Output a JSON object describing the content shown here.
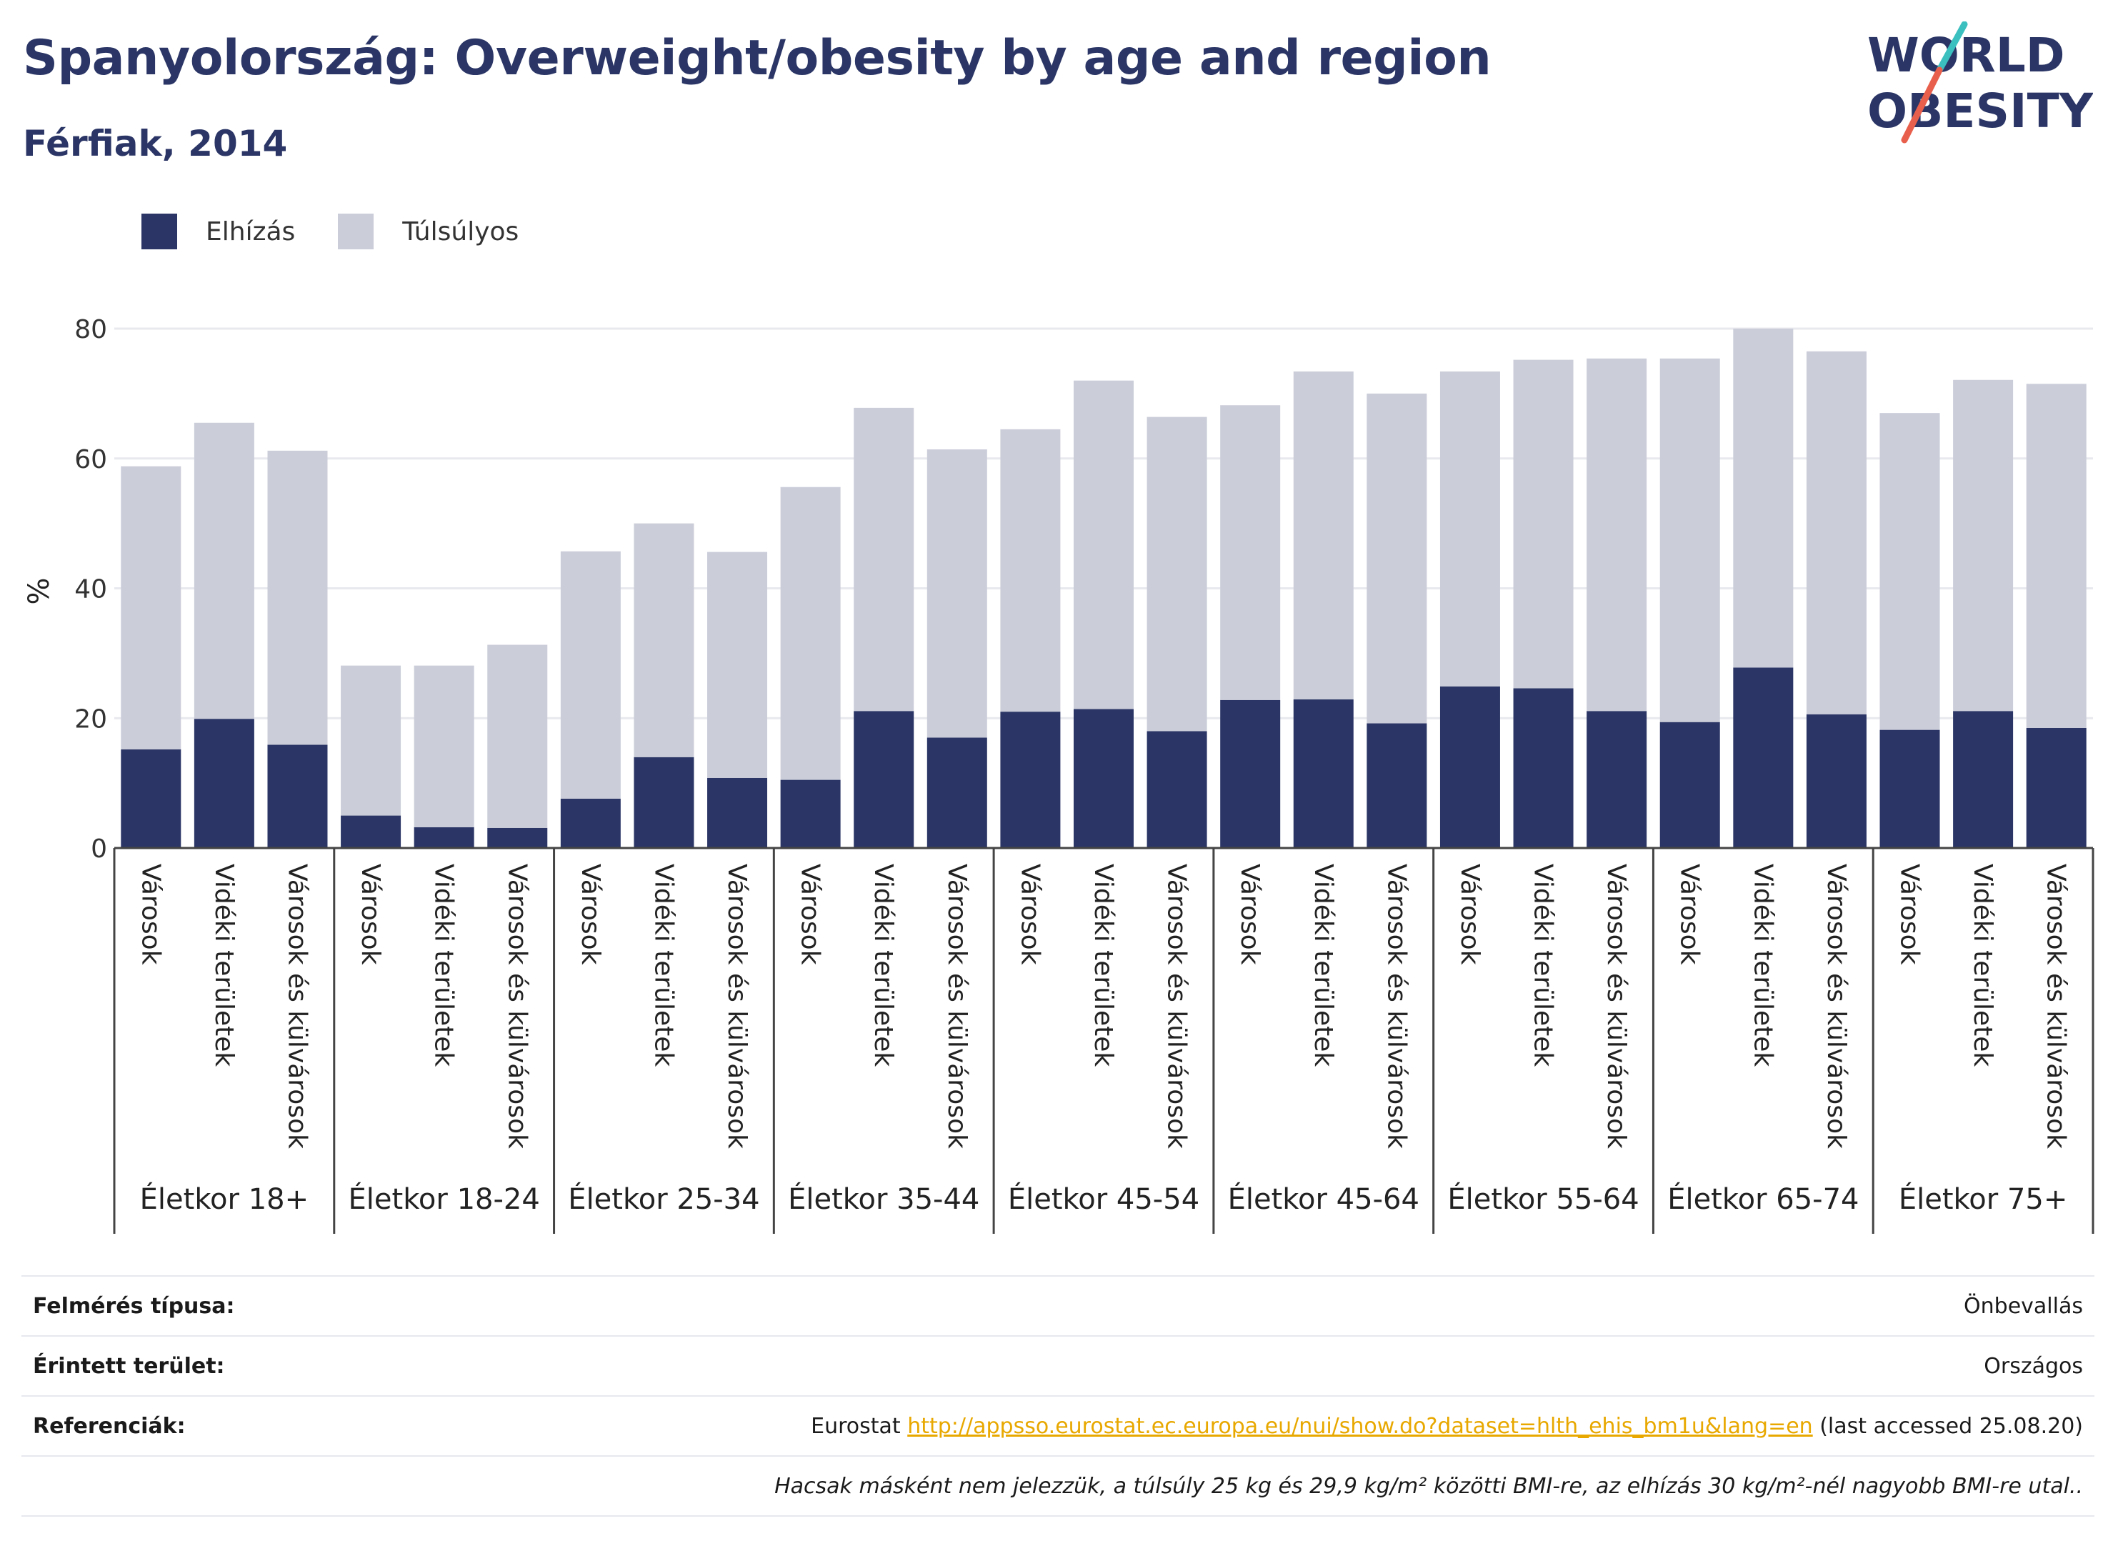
{
  "header": {
    "title": "Spanyolország: Overweight/obesity by age and region",
    "subtitle": "Férfiak, 2014"
  },
  "logo": {
    "line1": "WORLD",
    "line2": "OBESITY",
    "icon": "world-obesity-logo"
  },
  "colors": {
    "obesity": "#2b3666",
    "overweight": "#cbcdd9",
    "accent_teal": "#3bbfbf",
    "accent_red": "#e8604c",
    "link": "#e8a800"
  },
  "chart_data": {
    "type": "bar",
    "stacked": true,
    "ylabel": "%",
    "ylim": [
      0,
      80
    ],
    "yticks": [
      0,
      20,
      40,
      60,
      80
    ],
    "grid": true,
    "legend_position": "top-left",
    "group_labels": [
      "Életkor 18+",
      "Életkor 18-24",
      "Életkor 25-34",
      "Életkor 35-44",
      "Életkor 45-54",
      "Életkor 45-64",
      "Életkor 55-64",
      "Életkor 65-74",
      "Életkor 75+"
    ],
    "subcategories": [
      "Városok",
      "Vidéki területek",
      "Városok és külvárosok"
    ],
    "series": [
      {
        "name": "Elhízás",
        "color": "#2b3666",
        "values": [
          15.2,
          19.9,
          15.9,
          5.0,
          3.2,
          3.1,
          7.6,
          14.0,
          10.8,
          10.5,
          21.1,
          17.0,
          21.0,
          21.4,
          18.0,
          22.8,
          22.9,
          19.2,
          24.9,
          24.6,
          21.1,
          19.4,
          27.8,
          20.6,
          18.2,
          21.1,
          18.5
        ]
      },
      {
        "name": "Túlsúlyos",
        "color": "#cbcdd9",
        "values": [
          43.6,
          45.6,
          45.3,
          23.1,
          24.9,
          28.2,
          38.1,
          36.0,
          34.8,
          45.1,
          46.7,
          44.4,
          43.5,
          50.6,
          48.4,
          45.4,
          50.5,
          50.8,
          48.5,
          50.6,
          54.3,
          56.0,
          52.2,
          55.9,
          48.8,
          51.0,
          53.0
        ]
      }
    ]
  },
  "info": {
    "rows": [
      {
        "label": "Felmérés típusa:",
        "value": "Önbevallás"
      },
      {
        "label": "Érintett terület:",
        "value": "Országos"
      }
    ],
    "ref_label": "Referenciák:",
    "ref_prefix": "Eurostat ",
    "ref_link": "http://appsso.eurostat.ec.europa.eu/nui/show.do?dataset=hlth_ehis_bm1u&lang=en",
    "ref_suffix": " (last accessed 25.08.20)",
    "note": "Hacsak másként nem jelezzük, a túlsúly 25 kg és 29,9 kg/m² közötti BMI-re, az elhízás 30 kg/m²-nél nagyobb BMI-re utal.."
  }
}
